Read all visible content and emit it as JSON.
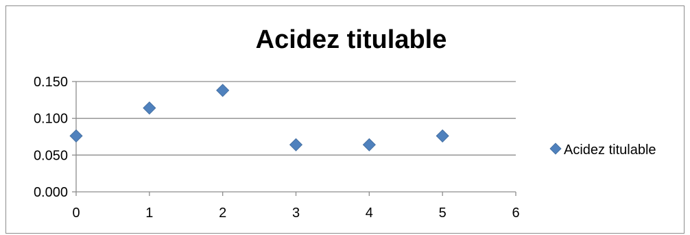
{
  "chart_data": {
    "type": "scatter",
    "title": "Acidez titulable",
    "xlabel": "",
    "ylabel": "",
    "xlim": [
      0,
      6
    ],
    "ylim": [
      0,
      0.15
    ],
    "x_ticks": [
      "0",
      "1",
      "2",
      "3",
      "4",
      "5",
      "6"
    ],
    "y_ticks": [
      "0.000",
      "0.050",
      "0.100",
      "0.150"
    ],
    "grid": "horizontal",
    "legend_position": "right",
    "series": [
      {
        "name": "Acidez titulable",
        "color": "#4F81BD",
        "marker": "diamond",
        "x": [
          0,
          1,
          2,
          3,
          4,
          5
        ],
        "y": [
          0.076,
          0.114,
          0.138,
          0.064,
          0.064,
          0.076
        ]
      }
    ]
  }
}
